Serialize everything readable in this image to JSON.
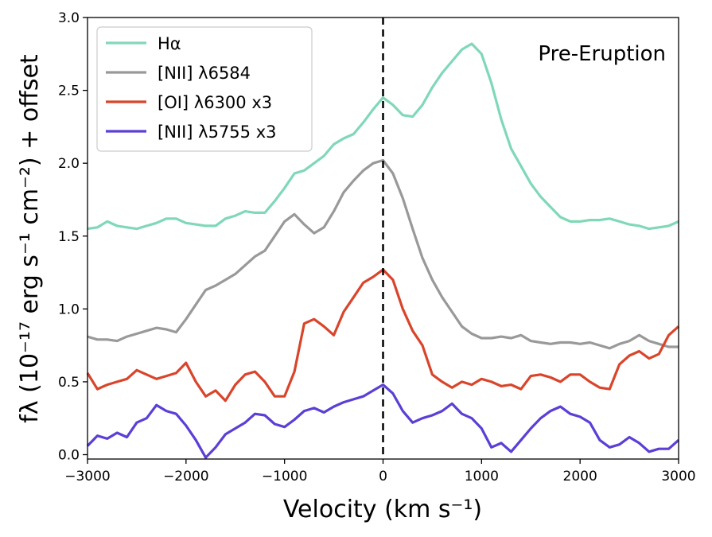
{
  "chart_data": {
    "type": "line",
    "xlabel": "Velocity (km s⁻¹)",
    "ylabel": "fλ (10⁻¹⁷ erg s⁻¹ cm⁻²) + offset",
    "annotation": "Pre-Eruption",
    "xlim": [
      -3000,
      3000
    ],
    "ylim": [
      -0.03,
      3.0
    ],
    "xticks": [
      -3000,
      -2000,
      -1000,
      0,
      1000,
      2000,
      3000
    ],
    "xtick_labels": [
      "−3000",
      "−2000",
      "−1000",
      "0",
      "1000",
      "2000",
      "3000"
    ],
    "yticks": [
      0.0,
      0.5,
      1.0,
      1.5,
      2.0,
      2.5,
      3.0
    ],
    "ytick_labels": [
      "0.0",
      "0.5",
      "1.0",
      "1.5",
      "2.0",
      "2.5",
      "3.0"
    ],
    "vline": {
      "x": 0,
      "style": "dashed",
      "color": "#000000"
    },
    "legend": {
      "location": "top-left"
    },
    "series": [
      {
        "name": "Hα",
        "color": "#7fd8b8",
        "x": [
          -3000,
          -2900,
          -2800,
          -2700,
          -2600,
          -2500,
          -2400,
          -2300,
          -2200,
          -2100,
          -2000,
          -1900,
          -1800,
          -1700,
          -1600,
          -1500,
          -1400,
          -1300,
          -1200,
          -1100,
          -1000,
          -900,
          -800,
          -700,
          -600,
          -500,
          -400,
          -300,
          -200,
          -100,
          0,
          100,
          200,
          300,
          400,
          500,
          600,
          700,
          800,
          900,
          1000,
          1100,
          1200,
          1300,
          1400,
          1500,
          1600,
          1700,
          1800,
          1900,
          2000,
          2100,
          2200,
          2300,
          2400,
          2500,
          2600,
          2700,
          2800,
          2900,
          3000
        ],
        "values": [
          1.55,
          1.56,
          1.6,
          1.57,
          1.56,
          1.55,
          1.57,
          1.59,
          1.62,
          1.62,
          1.59,
          1.58,
          1.57,
          1.57,
          1.62,
          1.64,
          1.67,
          1.66,
          1.66,
          1.74,
          1.83,
          1.93,
          1.95,
          2.0,
          2.05,
          2.13,
          2.17,
          2.2,
          2.28,
          2.37,
          2.45,
          2.4,
          2.33,
          2.32,
          2.4,
          2.52,
          2.62,
          2.7,
          2.78,
          2.82,
          2.75,
          2.55,
          2.3,
          2.1,
          1.98,
          1.86,
          1.77,
          1.7,
          1.63,
          1.6,
          1.6,
          1.61,
          1.61,
          1.62,
          1.6,
          1.58,
          1.57,
          1.55,
          1.56,
          1.57,
          1.6
        ]
      },
      {
        "name": "[NII] λ6584",
        "color": "#999999",
        "x": [
          -3000,
          -2900,
          -2800,
          -2700,
          -2600,
          -2500,
          -2400,
          -2300,
          -2200,
          -2100,
          -2000,
          -1900,
          -1800,
          -1700,
          -1600,
          -1500,
          -1400,
          -1300,
          -1200,
          -1100,
          -1000,
          -900,
          -800,
          -700,
          -600,
          -500,
          -400,
          -300,
          -200,
          -100,
          0,
          100,
          200,
          300,
          400,
          500,
          600,
          700,
          800,
          900,
          1000,
          1100,
          1200,
          1300,
          1400,
          1500,
          1600,
          1700,
          1800,
          1900,
          2000,
          2100,
          2200,
          2300,
          2400,
          2500,
          2600,
          2700,
          2800,
          2900,
          3000
        ],
        "values": [
          0.81,
          0.79,
          0.79,
          0.78,
          0.81,
          0.83,
          0.85,
          0.87,
          0.86,
          0.84,
          0.93,
          1.03,
          1.13,
          1.16,
          1.2,
          1.24,
          1.3,
          1.36,
          1.4,
          1.5,
          1.6,
          1.65,
          1.58,
          1.52,
          1.56,
          1.67,
          1.8,
          1.88,
          1.95,
          2.0,
          2.02,
          1.93,
          1.76,
          1.55,
          1.35,
          1.2,
          1.08,
          0.98,
          0.88,
          0.83,
          0.8,
          0.8,
          0.81,
          0.8,
          0.82,
          0.78,
          0.77,
          0.76,
          0.77,
          0.77,
          0.76,
          0.77,
          0.75,
          0.73,
          0.76,
          0.78,
          0.82,
          0.78,
          0.76,
          0.74,
          0.74
        ]
      },
      {
        "name": "[OI] λ6300 x3",
        "color": "#d9452b",
        "x": [
          -3000,
          -2900,
          -2800,
          -2700,
          -2600,
          -2500,
          -2400,
          -2300,
          -2200,
          -2100,
          -2000,
          -1900,
          -1800,
          -1700,
          -1600,
          -1500,
          -1400,
          -1300,
          -1200,
          -1100,
          -1000,
          -900,
          -800,
          -700,
          -600,
          -500,
          -400,
          -300,
          -200,
          -100,
          0,
          100,
          200,
          300,
          400,
          500,
          600,
          700,
          800,
          900,
          1000,
          1100,
          1200,
          1300,
          1400,
          1500,
          1600,
          1700,
          1800,
          1900,
          2000,
          2100,
          2200,
          2300,
          2400,
          2500,
          2600,
          2700,
          2800,
          2900,
          3000
        ],
        "values": [
          0.56,
          0.45,
          0.48,
          0.5,
          0.52,
          0.58,
          0.55,
          0.52,
          0.54,
          0.56,
          0.63,
          0.5,
          0.4,
          0.44,
          0.37,
          0.48,
          0.55,
          0.57,
          0.5,
          0.4,
          0.4,
          0.57,
          0.9,
          0.93,
          0.88,
          0.82,
          0.98,
          1.08,
          1.18,
          1.22,
          1.27,
          1.2,
          1.0,
          0.85,
          0.75,
          0.55,
          0.5,
          0.46,
          0.5,
          0.48,
          0.52,
          0.5,
          0.47,
          0.48,
          0.45,
          0.54,
          0.55,
          0.53,
          0.5,
          0.55,
          0.55,
          0.5,
          0.46,
          0.45,
          0.62,
          0.68,
          0.71,
          0.66,
          0.69,
          0.82,
          0.88
        ]
      },
      {
        "name": "[NII] λ5755 x3",
        "color": "#5b3fd6",
        "x": [
          -3000,
          -2900,
          -2800,
          -2700,
          -2600,
          -2500,
          -2400,
          -2300,
          -2200,
          -2100,
          -2000,
          -1900,
          -1800,
          -1700,
          -1600,
          -1500,
          -1400,
          -1300,
          -1200,
          -1100,
          -1000,
          -900,
          -800,
          -700,
          -600,
          -500,
          -400,
          -300,
          -200,
          -100,
          0,
          100,
          200,
          300,
          400,
          500,
          600,
          700,
          800,
          900,
          1000,
          1100,
          1200,
          1300,
          1400,
          1500,
          1600,
          1700,
          1800,
          1900,
          2000,
          2100,
          2200,
          2300,
          2400,
          2500,
          2600,
          2700,
          2800,
          2900,
          3000
        ],
        "values": [
          0.06,
          0.13,
          0.11,
          0.15,
          0.12,
          0.22,
          0.25,
          0.34,
          0.3,
          0.28,
          0.2,
          0.1,
          -0.02,
          0.05,
          0.14,
          0.18,
          0.22,
          0.28,
          0.27,
          0.21,
          0.19,
          0.24,
          0.3,
          0.32,
          0.29,
          0.33,
          0.36,
          0.38,
          0.4,
          0.44,
          0.48,
          0.42,
          0.3,
          0.22,
          0.25,
          0.27,
          0.3,
          0.35,
          0.28,
          0.25,
          0.18,
          0.05,
          0.08,
          0.02,
          0.1,
          0.18,
          0.25,
          0.3,
          0.33,
          0.28,
          0.26,
          0.22,
          0.1,
          0.05,
          0.07,
          0.12,
          0.08,
          0.02,
          0.04,
          0.04,
          0.1
        ]
      }
    ]
  }
}
